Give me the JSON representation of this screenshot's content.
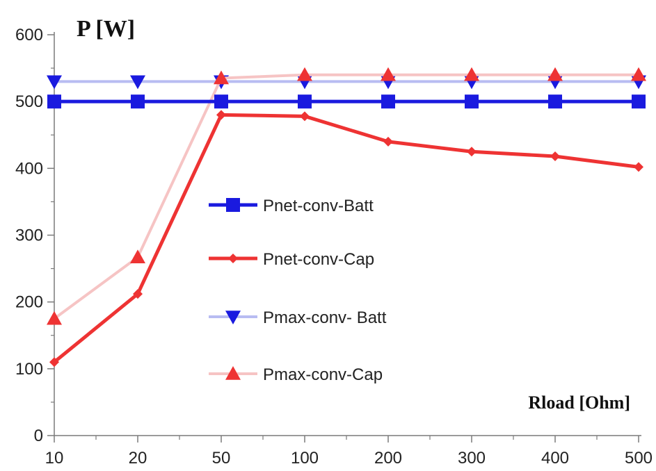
{
  "chart_data": {
    "type": "line",
    "categories": [
      "10",
      "20",
      "50",
      "100",
      "200",
      "300",
      "400",
      "500"
    ],
    "ylabel": "P [W]",
    "xlabel": "Rload [Ohm]",
    "ylim": [
      0,
      600
    ],
    "yticks": [
      "0",
      "100",
      "200",
      "300",
      "400",
      "500",
      "600"
    ],
    "grid": false,
    "legend_position": "center",
    "series": [
      {
        "name": "Pnet-conv-Batt",
        "values": [
          500,
          500,
          500,
          500,
          500,
          500,
          500,
          500
        ],
        "color": "#1a1adf",
        "marker": "square"
      },
      {
        "name": "Pnet-conv-Cap",
        "values": [
          110,
          212,
          480,
          478,
          440,
          425,
          418,
          402
        ],
        "color": "#ee3333",
        "marker": "diamond"
      },
      {
        "name": "Pmax-conv- Batt",
        "values": [
          530,
          530,
          530,
          530,
          530,
          530,
          530,
          530
        ],
        "color": "#b8bcf2",
        "marker": "triangle-down"
      },
      {
        "name": "Pmax-conv-Cap",
        "values": [
          175,
          267,
          535,
          540,
          540,
          540,
          540,
          540
        ],
        "color": "#f6c4c4",
        "marker": "triangle-up"
      }
    ]
  }
}
